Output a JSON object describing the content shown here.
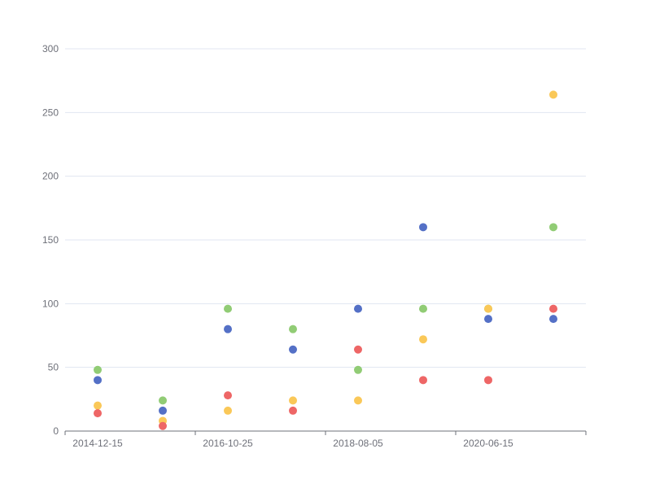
{
  "chart_data": {
    "type": "scatter",
    "title": "",
    "xlabel": "",
    "ylabel": "",
    "ylim": [
      0,
      300
    ],
    "y_ticks": [
      0,
      50,
      100,
      150,
      200,
      250,
      300
    ],
    "x_tick_labels": [
      "2014-12-15",
      "2016-10-25",
      "2018-08-05",
      "2020-06-15"
    ],
    "categories": [
      "2014-12-15",
      "2015-11-20",
      "2016-10-25",
      "2017-09-30",
      "2018-08-05",
      "2019-07-10",
      "2020-06-15",
      "2021-05-20"
    ],
    "grid": true,
    "legend": "none",
    "series": [
      {
        "color": "#5470c6",
        "values": [
          40,
          16,
          80,
          64,
          96,
          160,
          88,
          88
        ]
      },
      {
        "color": "#91cc75",
        "values": [
          48,
          24,
          96,
          80,
          48,
          96,
          96,
          160
        ]
      },
      {
        "color": "#fac858",
        "values": [
          20,
          8,
          16,
          24,
          24,
          72,
          96,
          264
        ]
      },
      {
        "color": "#ee6666",
        "values": [
          14,
          4,
          28,
          16,
          64,
          40,
          40,
          96
        ]
      }
    ]
  }
}
